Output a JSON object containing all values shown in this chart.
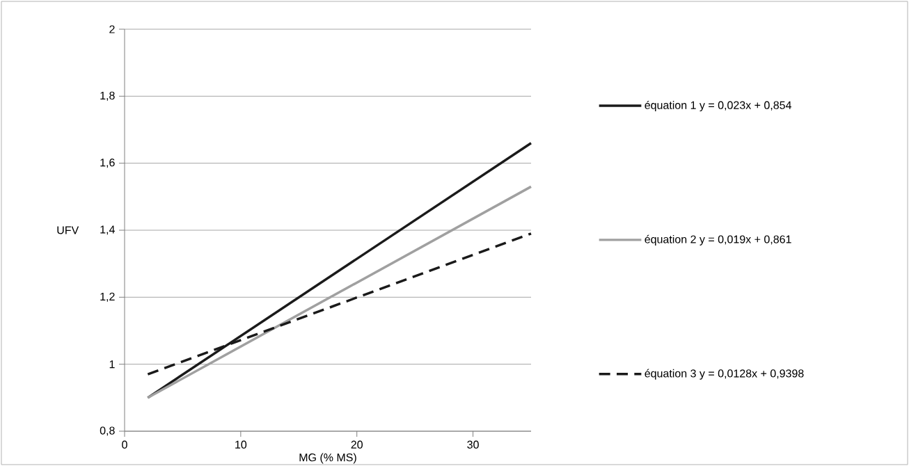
{
  "chart_data": {
    "type": "line",
    "xlabel": "MG (% MS)",
    "ylabel": "UFV",
    "x": [
      2,
      35
    ],
    "series": [
      {
        "name": "équation 1  y = 0,023x + 0,854",
        "color": "#1a1a1a",
        "values": [
          0.9,
          1.66
        ],
        "line_style": "solid"
      },
      {
        "name": "équation 2  y = 0,019x + 0,861",
        "color": "#a0a0a0",
        "values": [
          0.9,
          1.53
        ],
        "line_style": "solid"
      },
      {
        "name": "équation 3  y = 0,0128x + 0,9398",
        "color": "#1a1a1a",
        "values": [
          0.97,
          1.39
        ],
        "line_style": "dashed"
      }
    ],
    "xlim": [
      0,
      35
    ],
    "xticks": [
      0,
      10,
      20,
      30
    ],
    "ylim": [
      0.8,
      2
    ],
    "yticks": [
      {
        "value": 0.8,
        "label": "0,8"
      },
      1,
      {
        "value": 1.2,
        "label": "1,2"
      },
      {
        "value": 1.4,
        "label": "1,4"
      },
      {
        "value": 1.6,
        "label": "1,6"
      },
      {
        "value": 1.8,
        "label": "1,8"
      },
      2
    ],
    "grid": "y",
    "legend": "right",
    "marker": "none"
  }
}
